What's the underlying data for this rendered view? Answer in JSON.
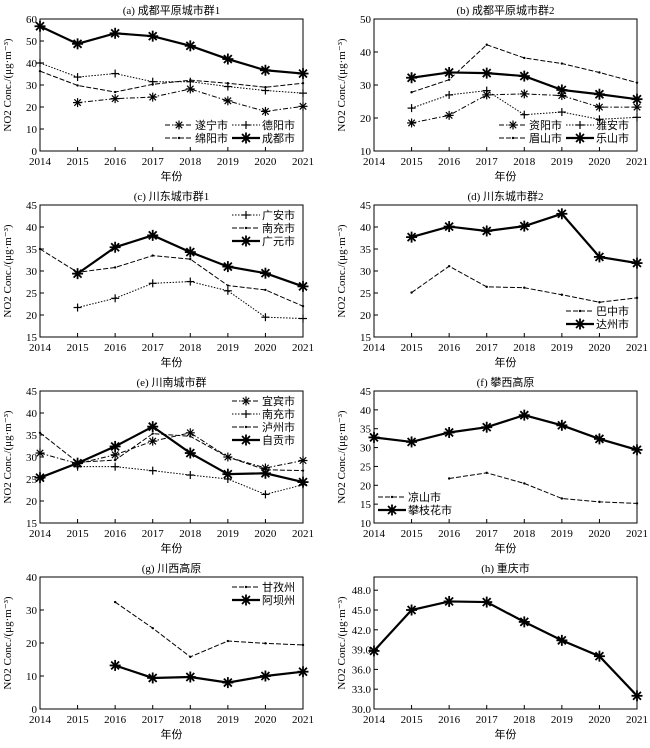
{
  "chart_data": [
    {
      "type": "line",
      "title": "(a) 成都平原城市群1",
      "xlabel": "年份",
      "ylabel": "NO2 Conc./(μg·m⁻³)",
      "ylim": [
        0,
        60
      ],
      "yticks": [
        0,
        10,
        20,
        30,
        40,
        50,
        60
      ],
      "ytick_labels": [
        "0",
        "10",
        "20",
        "30",
        "40",
        "50",
        "60"
      ],
      "legend": "bottom-right",
      "legend_columns": 2,
      "x": [
        2014,
        2015,
        2016,
        2017,
        2018,
        2019,
        2020,
        2021
      ],
      "series": [
        {
          "name": "遂宁市",
          "marker": "asterisk",
          "line": "dashdot",
          "values": [
            null,
            22.0,
            23.8,
            24.5,
            28.2,
            22.8,
            18.0,
            20.3
          ]
        },
        {
          "name": "德阳市",
          "marker": "plus",
          "line": "dotted",
          "values": [
            40.0,
            33.6,
            35.2,
            31.5,
            31.5,
            29.3,
            27.5,
            26.3
          ]
        },
        {
          "name": "绵阳市",
          "marker": "dot",
          "line": "dashed",
          "values": [
            36.3,
            29.8,
            26.8,
            30.3,
            32.2,
            30.8,
            29.0,
            30.8
          ]
        },
        {
          "name": "成都市",
          "marker": "asterisk",
          "line": "solid",
          "values": [
            56.7,
            48.7,
            53.5,
            52.2,
            47.8,
            41.8,
            36.7,
            35.2
          ]
        }
      ]
    },
    {
      "type": "line",
      "title": "(b) 成都平原城市群2",
      "xlabel": "年份",
      "ylabel": "NO2 Conc./(μg·m⁻³)",
      "ylim": [
        10,
        50
      ],
      "yticks": [
        10,
        20,
        30,
        40,
        50
      ],
      "ytick_labels": [
        "10",
        "20",
        "30",
        "40",
        "50"
      ],
      "legend": "bottom-right",
      "legend_columns": 2,
      "x": [
        2014,
        2015,
        2016,
        2017,
        2018,
        2019,
        2020,
        2021
      ],
      "series": [
        {
          "name": "资阳市",
          "marker": "asterisk",
          "line": "dashdot",
          "values": [
            null,
            18.5,
            20.8,
            27.0,
            27.3,
            26.8,
            23.3,
            23.3
          ]
        },
        {
          "name": "雅安市",
          "marker": "plus",
          "line": "dotted",
          "values": [
            null,
            23.0,
            27.0,
            28.3,
            21.0,
            21.8,
            19.6,
            20.2
          ]
        },
        {
          "name": "眉山市",
          "marker": "dot",
          "line": "dashed",
          "values": [
            null,
            27.8,
            31.6,
            42.2,
            38.2,
            36.5,
            33.8,
            30.7
          ]
        },
        {
          "name": "乐山市",
          "marker": "asterisk",
          "line": "solid",
          "values": [
            null,
            32.2,
            33.8,
            33.6,
            32.7,
            28.5,
            27.2,
            25.7
          ]
        }
      ]
    },
    {
      "type": "line",
      "title": "(c) 川东城市群1",
      "xlabel": "年份",
      "ylabel": "NO2 Conc./(μg·m⁻³)",
      "ylim": [
        15,
        45
      ],
      "yticks": [
        15,
        20,
        25,
        30,
        35,
        40,
        45
      ],
      "ytick_labels": [
        "15",
        "20",
        "25",
        "30",
        "35",
        "40",
        "45"
      ],
      "legend": "top-right",
      "legend_columns": 1,
      "x": [
        2014,
        2015,
        2016,
        2017,
        2018,
        2019,
        2020,
        2021
      ],
      "series": [
        {
          "name": "广安市",
          "marker": "plus",
          "line": "dotted",
          "values": [
            null,
            21.7,
            23.8,
            27.2,
            27.6,
            25.5,
            19.5,
            19.2
          ]
        },
        {
          "name": "南充市",
          "marker": "dot",
          "line": "dashed",
          "values": [
            35.0,
            29.7,
            30.8,
            33.5,
            32.7,
            26.7,
            25.7,
            22.0
          ]
        },
        {
          "name": "广元市",
          "marker": "asterisk",
          "line": "solid",
          "values": [
            null,
            29.4,
            35.4,
            38.1,
            34.3,
            31.0,
            29.5,
            26.5
          ]
        }
      ]
    },
    {
      "type": "line",
      "title": "(d) 川东城市群2",
      "xlabel": "年份",
      "ylabel": "NO2 Conc./(μg·m⁻³)",
      "ylim": [
        15,
        45
      ],
      "yticks": [
        15,
        20,
        25,
        30,
        35,
        40,
        45
      ],
      "ytick_labels": [
        "15",
        "20",
        "25",
        "30",
        "35",
        "40",
        "45"
      ],
      "legend": "bottom-right",
      "legend_columns": 1,
      "x": [
        2014,
        2015,
        2016,
        2017,
        2018,
        2019,
        2020,
        2021
      ],
      "series": [
        {
          "name": "巴中市",
          "marker": "dot",
          "line": "dashed",
          "values": [
            null,
            25.1,
            31.1,
            26.4,
            26.2,
            24.6,
            22.9,
            23.9
          ]
        },
        {
          "name": "达州市",
          "marker": "asterisk",
          "line": "solid",
          "values": [
            null,
            37.7,
            40.1,
            39.1,
            40.2,
            43.0,
            33.2,
            31.8
          ]
        }
      ]
    },
    {
      "type": "line",
      "title": "(e) 川南城市群",
      "xlabel": "年份",
      "ylabel": "NO2 Conc./(μg·m⁻³)",
      "ylim": [
        15,
        45
      ],
      "yticks": [
        15,
        20,
        25,
        30,
        35,
        40,
        45
      ],
      "ytick_labels": [
        "15",
        "20",
        "25",
        "30",
        "35",
        "40",
        "45"
      ],
      "legend": "top-right",
      "legend_columns": 1,
      "x": [
        2014,
        2015,
        2016,
        2017,
        2018,
        2019,
        2020,
        2021
      ],
      "series": [
        {
          "name": "宜宾市",
          "marker": "asterisk",
          "line": "dashdot",
          "values": [
            30.9,
            28.5,
            30.5,
            33.6,
            35.5,
            30.0,
            27.5,
            29.2
          ]
        },
        {
          "name": "南充市",
          "marker": "plus",
          "line": "dotted",
          "values": [
            null,
            27.8,
            27.8,
            26.9,
            25.9,
            25.0,
            21.5,
            23.7
          ]
        },
        {
          "name": "泸州市",
          "marker": "dot",
          "line": "dashed",
          "values": [
            35.5,
            28.8,
            29.3,
            35.3,
            34.7,
            30.0,
            27.1,
            26.9
          ]
        },
        {
          "name": "自贡市",
          "marker": "asterisk",
          "line": "solid",
          "values": [
            25.3,
            28.6,
            32.4,
            36.9,
            30.9,
            26.1,
            26.3,
            24.3
          ]
        }
      ]
    },
    {
      "type": "line",
      "title": "(f) 攀西高原",
      "xlabel": "年份",
      "ylabel": "NO2 Conc./(μg·m⁻³)",
      "ylim": [
        10,
        45
      ],
      "yticks": [
        10,
        15,
        20,
        25,
        30,
        35,
        40,
        45
      ],
      "ytick_labels": [
        "10",
        "15",
        "20",
        "25",
        "30",
        "35",
        "40",
        "45"
      ],
      "legend": "bottom-left",
      "legend_columns": 1,
      "x": [
        2014,
        2015,
        2016,
        2017,
        2018,
        2019,
        2020,
        2021
      ],
      "series": [
        {
          "name": "凉山市",
          "marker": "dot",
          "line": "dashed",
          "values": [
            null,
            null,
            21.8,
            23.3,
            20.5,
            16.5,
            15.6,
            15.2
          ]
        },
        {
          "name": "攀枝花市",
          "marker": "asterisk",
          "line": "solid",
          "values": [
            32.7,
            31.5,
            34.0,
            35.4,
            38.6,
            35.9,
            32.3,
            29.4
          ]
        }
      ]
    },
    {
      "type": "line",
      "title": "(g) 川西高原",
      "xlabel": "年份",
      "ylabel": "NO2 Conc./(μg·m⁻³)",
      "ylim": [
        0,
        40
      ],
      "yticks": [
        0,
        10,
        20,
        30,
        40
      ],
      "ytick_labels": [
        "0",
        "10",
        "20",
        "30",
        "40"
      ],
      "legend": "top-right",
      "legend_columns": 1,
      "x": [
        2014,
        2015,
        2016,
        2017,
        2018,
        2019,
        2020,
        2021
      ],
      "series": [
        {
          "name": "甘孜州",
          "marker": "dot",
          "line": "dashed",
          "values": [
            null,
            null,
            32.4,
            24.5,
            15.8,
            20.6,
            19.9,
            19.4
          ]
        },
        {
          "name": "阿坝州",
          "marker": "asterisk",
          "line": "solid",
          "values": [
            null,
            null,
            13.2,
            9.4,
            9.7,
            8.0,
            10.0,
            11.3
          ]
        }
      ]
    },
    {
      "type": "line",
      "title": "(h) 重庆市",
      "xlabel": "年份",
      "ylabel": "NO2 Conc./(μg·m⁻³)",
      "ylim": [
        30,
        50
      ],
      "yticks": [
        30,
        33,
        36,
        39,
        42,
        45,
        48
      ],
      "ytick_labels": [
        "30.0",
        "33.0",
        "36.0",
        "39.0",
        "42.0",
        "45.0",
        "48.0"
      ],
      "legend": "none",
      "legend_columns": 0,
      "x": [
        2014,
        2015,
        2016,
        2017,
        2018,
        2019,
        2020,
        2021
      ],
      "series": [
        {
          "marker": "asterisk",
          "line": "solid",
          "values": [
            38.8,
            45.0,
            46.3,
            46.2,
            43.2,
            40.4,
            38.0,
            32.0
          ]
        }
      ]
    }
  ]
}
